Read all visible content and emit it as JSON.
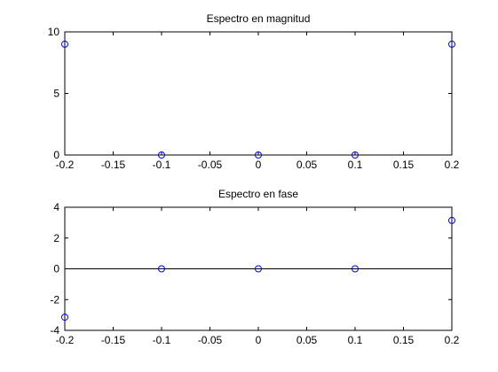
{
  "chart_data": [
    {
      "type": "scatter",
      "title": "Espectro en magnitud",
      "xlabel": "",
      "ylabel": "",
      "xlim": [
        -0.2,
        0.2
      ],
      "ylim": [
        0,
        10
      ],
      "xticks": [
        -0.2,
        -0.15,
        -0.1,
        -0.05,
        0,
        0.05,
        0.1,
        0.15,
        0.2
      ],
      "xtick_labels": [
        "-0.2",
        "-0.15",
        "-0.1",
        "-0.05",
        "0",
        "0.05",
        "0.1",
        "0.15",
        "0.2"
      ],
      "yticks": [
        0,
        5,
        10
      ],
      "ytick_labels": [
        "0",
        "5",
        "10"
      ],
      "baseline": false,
      "grid": false,
      "marker": "circle",
      "marker_color": "#0000ff",
      "series": [
        {
          "x": [
            -0.2,
            -0.1,
            0,
            0.1,
            0.2
          ],
          "y": [
            9,
            0,
            0,
            0,
            9
          ]
        }
      ]
    },
    {
      "type": "scatter",
      "title": "Espectro en fase",
      "xlabel": "",
      "ylabel": "",
      "xlim": [
        -0.2,
        0.2
      ],
      "ylim": [
        -4,
        4
      ],
      "xticks": [
        -0.2,
        -0.15,
        -0.1,
        -0.05,
        0,
        0.05,
        0.1,
        0.15,
        0.2
      ],
      "xtick_labels": [
        "-0.2",
        "-0.15",
        "-0.1",
        "-0.05",
        "0",
        "0.05",
        "0.1",
        "0.15",
        "0.2"
      ],
      "yticks": [
        -4,
        -2,
        0,
        2,
        4
      ],
      "ytick_labels": [
        "-4",
        "-2",
        "0",
        "2",
        "4"
      ],
      "baseline": true,
      "grid": false,
      "marker": "circle",
      "marker_color": "#0000ff",
      "series": [
        {
          "x": [
            -0.2,
            -0.1,
            0,
            0.1,
            0.2
          ],
          "y": [
            -3.1416,
            0,
            0,
            0,
            3.1416
          ]
        }
      ]
    }
  ]
}
